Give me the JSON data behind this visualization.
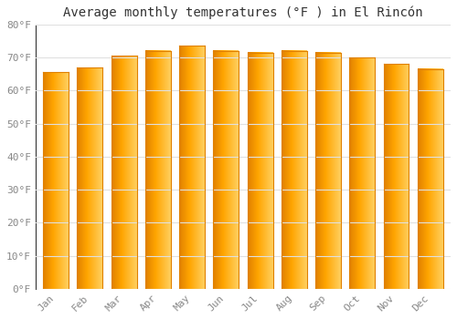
{
  "title": "Average monthly temperatures (°F ) in El Rincón",
  "months": [
    "Jan",
    "Feb",
    "Mar",
    "Apr",
    "May",
    "Jun",
    "Jul",
    "Aug",
    "Sep",
    "Oct",
    "Nov",
    "Dec"
  ],
  "values": [
    65.5,
    67.0,
    70.5,
    72.0,
    73.5,
    72.0,
    71.5,
    72.0,
    71.5,
    70.0,
    68.0,
    66.5
  ],
  "bar_color_dark": "#E08000",
  "bar_color_mid": "#FFA500",
  "bar_color_light": "#FFD060",
  "background_color": "#ffffff",
  "grid_color": "#e0e0e0",
  "ylim": [
    0,
    80
  ],
  "yticks": [
    0,
    10,
    20,
    30,
    40,
    50,
    60,
    70,
    80
  ],
  "ytick_labels": [
    "0°F",
    "10°F",
    "20°F",
    "30°F",
    "40°F",
    "50°F",
    "60°F",
    "70°F",
    "80°F"
  ],
  "tick_color": "#888888",
  "title_fontsize": 10,
  "tick_fontsize": 8,
  "bar_width": 0.75
}
